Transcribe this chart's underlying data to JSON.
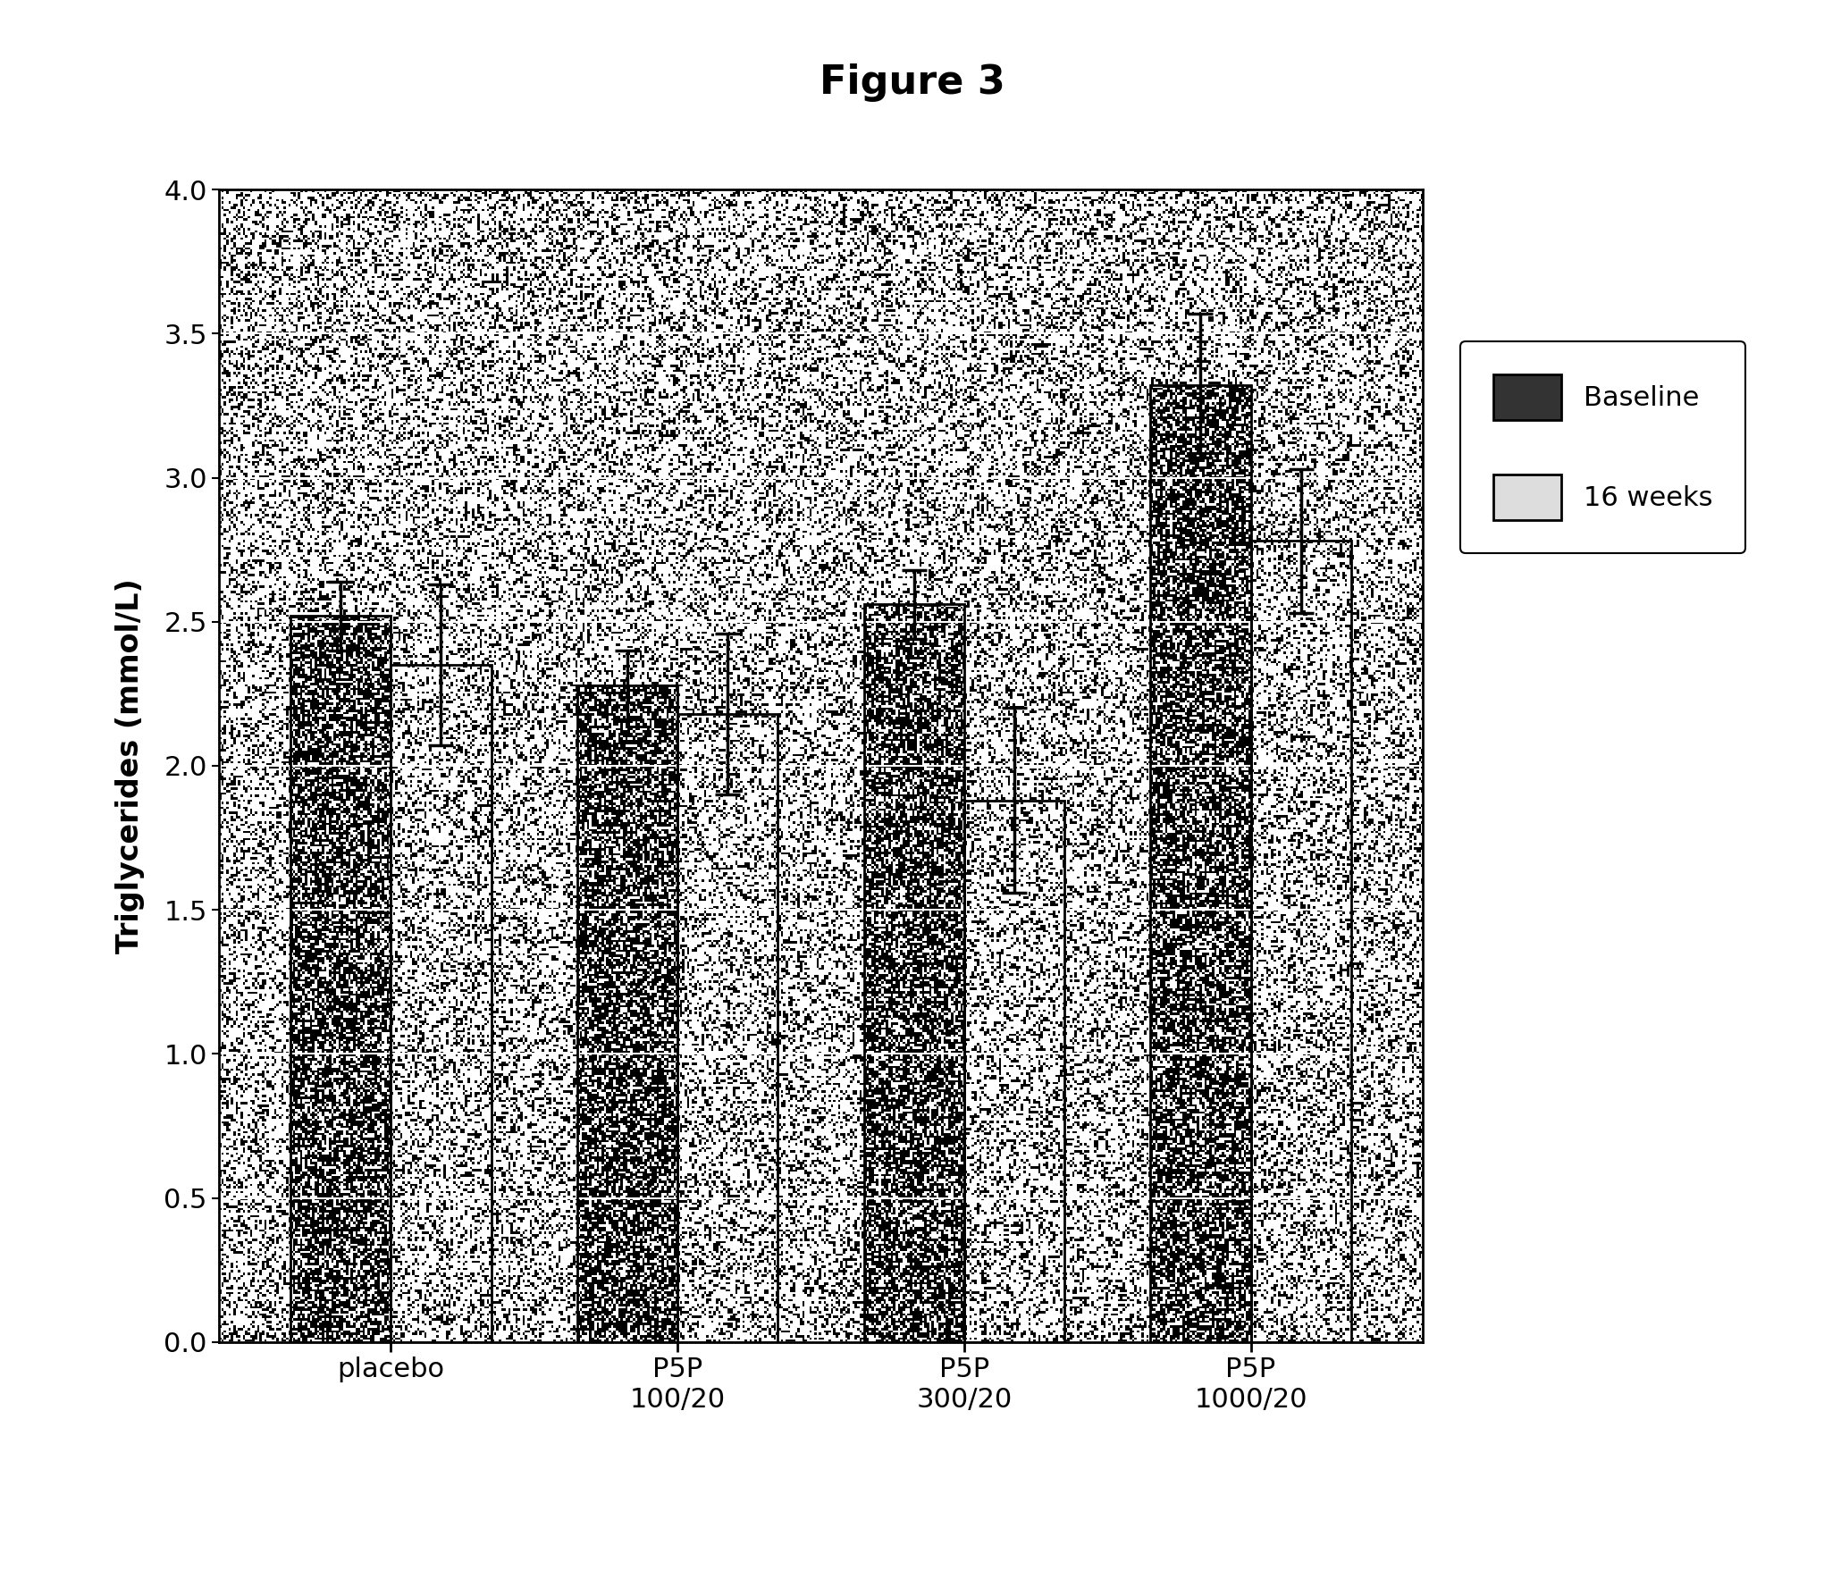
{
  "title": "Figure 3",
  "ylabel": "Triglycerides (mmol/L)",
  "categories": [
    "placebo",
    "P5P\n100/20",
    "P5P\n300/20",
    "P5P\n1000/20"
  ],
  "baseline_values": [
    2.52,
    2.28,
    2.56,
    3.32
  ],
  "baseline_errors": [
    0.12,
    0.12,
    0.12,
    0.25
  ],
  "weeks16_values": [
    2.35,
    2.18,
    1.88,
    2.78
  ],
  "weeks16_errors": [
    0.28,
    0.28,
    0.32,
    0.25
  ],
  "ylim": [
    0,
    4.0
  ],
  "yticks": [
    0,
    0.5,
    1.0,
    1.5,
    2.0,
    2.5,
    3.0,
    3.5,
    4.0
  ],
  "bar_width": 0.35,
  "background_color": "#ffffff",
  "title_fontsize": 32,
  "label_fontsize": 24,
  "tick_fontsize": 22,
  "legend_fontsize": 22
}
